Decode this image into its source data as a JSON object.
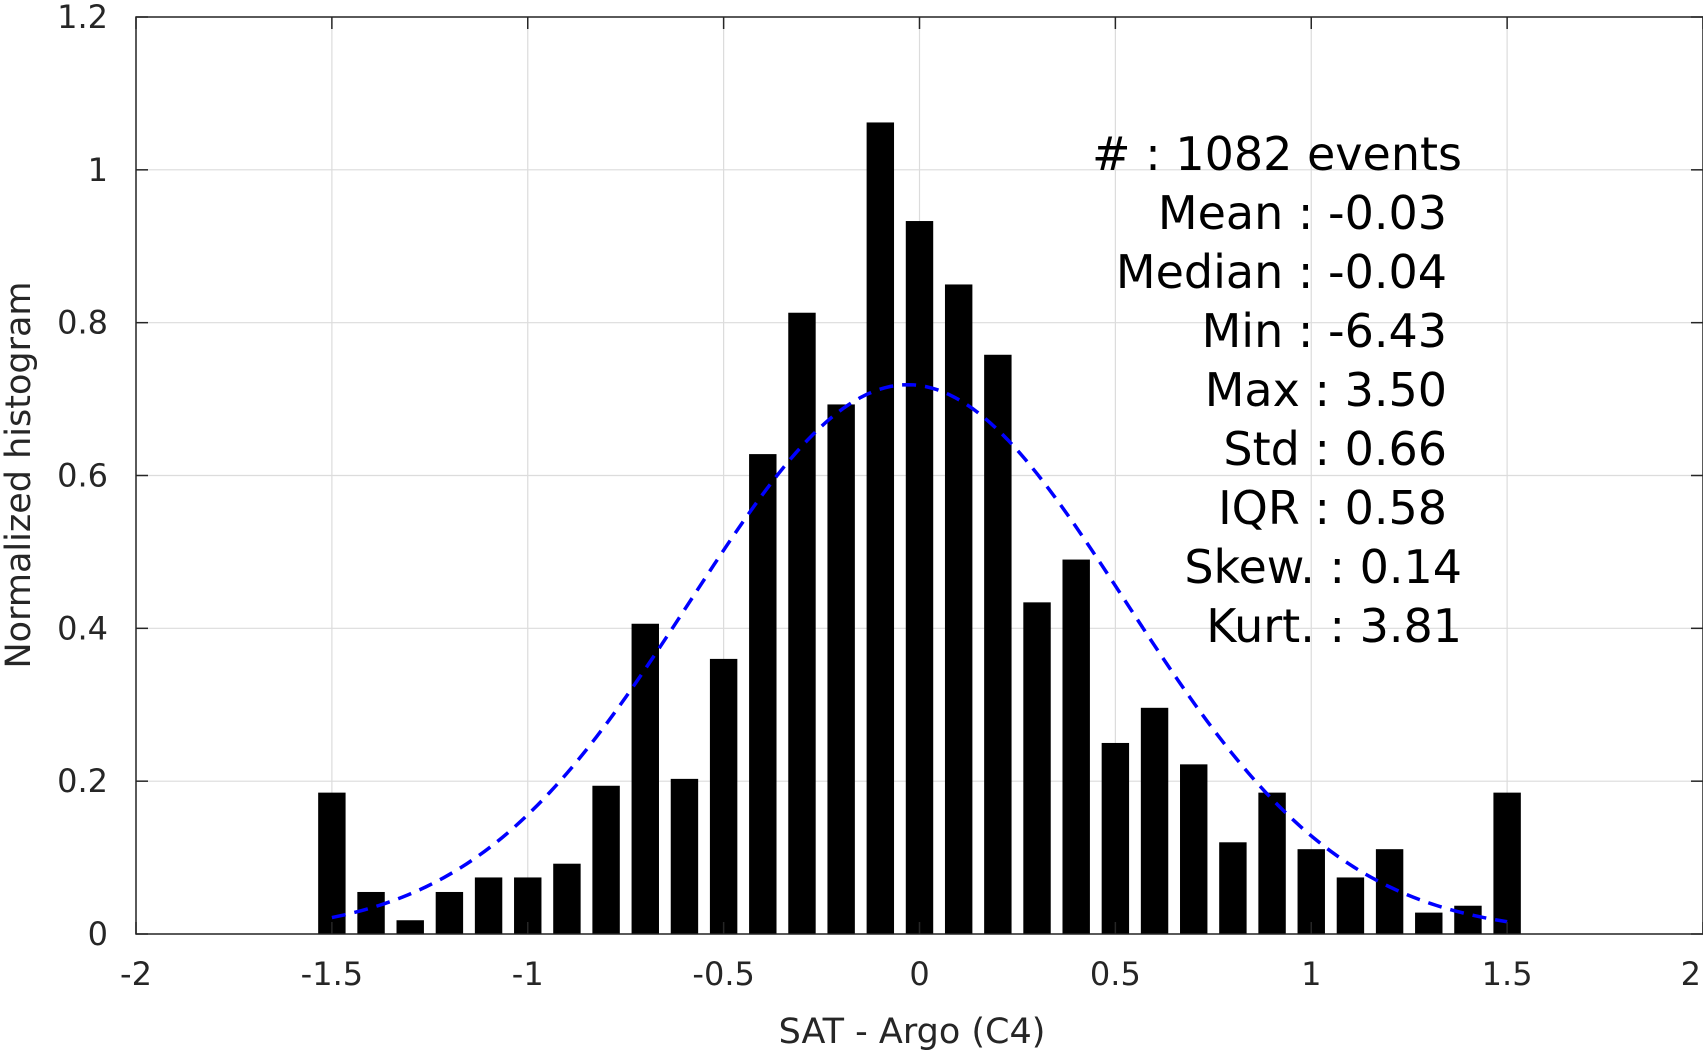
{
  "chart_data": {
    "type": "bar",
    "xlabel": "SAT - Argo (C4)",
    "ylabel": "Normalized histogram",
    "xlim": [
      -2,
      2
    ],
    "ylim": [
      0,
      1.2
    ],
    "grid": true,
    "x_ticks": [
      -2,
      -1.5,
      -1,
      -0.5,
      0,
      0.5,
      1,
      1.5,
      2
    ],
    "x_tick_labels": [
      "-2",
      "-1.5",
      "-1",
      "-0.5",
      "0",
      "0.5",
      "1",
      "1.5",
      "2"
    ],
    "y_ticks": [
      0,
      0.2,
      0.4,
      0.6,
      0.8,
      1,
      1.2
    ],
    "y_tick_labels": [
      "0",
      "0.2",
      "0.4",
      "0.6",
      "0.8",
      "1",
      "1.2"
    ],
    "bar_color": "#000000",
    "fit_color": "#0000ff",
    "bar_width": 0.07,
    "x": [
      -1.5,
      -1.4,
      -1.3,
      -1.2,
      -1.1,
      -1.0,
      -0.9,
      -0.8,
      -0.7,
      -0.6,
      -0.5,
      -0.4,
      -0.3,
      -0.2,
      -0.1,
      0.0,
      0.1,
      0.2,
      0.3,
      0.4,
      0.5,
      0.6,
      0.7,
      0.8,
      0.9,
      1.0,
      1.1,
      1.2,
      1.3,
      1.4,
      1.5
    ],
    "values": [
      0.185,
      0.055,
      0.018,
      0.055,
      0.074,
      0.074,
      0.092,
      0.194,
      0.406,
      0.203,
      0.36,
      0.628,
      0.813,
      0.693,
      1.062,
      0.933,
      0.85,
      0.758,
      0.434,
      0.49,
      0.25,
      0.296,
      0.222,
      0.12,
      0.185,
      0.111,
      0.074,
      0.111,
      0.028,
      0.037,
      0.185
    ],
    "fit": {
      "type": "normal",
      "mean": -0.03,
      "std": 0.555,
      "x_range": [
        -1.5,
        1.5
      ],
      "style": "dashed"
    },
    "annotations": [
      "#  : 1082 events",
      "Mean : -0.03",
      "Median : -0.04",
      "Min : -6.43",
      "Max : 3.50",
      "Std : 0.66",
      "IQR : 0.58",
      "Skew. : 0.14",
      "Kurt. : 3.81"
    ]
  }
}
